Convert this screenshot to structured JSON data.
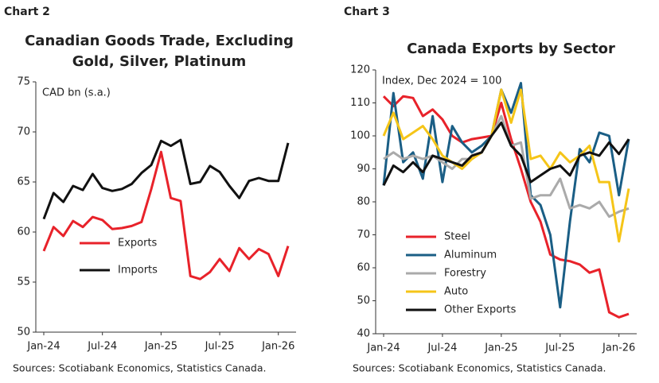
{
  "chart_data": [
    {
      "type": "line",
      "chart_label": "Chart 2",
      "title": [
        "Canadian Goods Trade, Excluding",
        "Gold, Silver, Platinum"
      ],
      "annotation": "CAD bn (s.a.)",
      "categories": [
        "Jan-24",
        null,
        null,
        null,
        null,
        null,
        "Jul-24",
        null,
        null,
        null,
        null,
        null,
        "Jan-25",
        null,
        null,
        null,
        null,
        null,
        "Jul-25",
        null,
        null,
        null,
        null,
        null,
        "Jan-26",
        null
      ],
      "series": [
        {
          "name": "Exports",
          "color": "#e8222a",
          "values": [
            58.1,
            60.5,
            59.6,
            61.1,
            60.5,
            61.5,
            61.2,
            60.3,
            60.4,
            60.6,
            61.0,
            64.3,
            68.0,
            63.4,
            63.1,
            55.6,
            55.3,
            56.0,
            57.3,
            56.1,
            58.4,
            57.3,
            58.3,
            57.8,
            55.6,
            58.6
          ]
        },
        {
          "name": "Imports",
          "color": "#111111",
          "values": [
            61.3,
            63.9,
            63.0,
            64.6,
            64.2,
            65.8,
            64.4,
            64.1,
            64.3,
            64.8,
            65.9,
            66.7,
            69.1,
            68.6,
            69.2,
            64.8,
            65.0,
            66.6,
            66.0,
            64.6,
            63.4,
            65.1,
            65.4,
            65.1,
            65.1,
            68.9
          ]
        }
      ],
      "ylim": [
        50,
        75
      ],
      "yticks": [
        50,
        55,
        60,
        65,
        70,
        75
      ],
      "legend": "lower center",
      "source": "Sources: Scotiabank Economics, Statistics Canada."
    },
    {
      "type": "line",
      "chart_label": "Chart 3",
      "title": [
        "Canada Exports by Sector"
      ],
      "annotation": "Index, Dec 2024 = 100",
      "categories": [
        "Jan-24",
        null,
        null,
        null,
        null,
        null,
        "Jul-24",
        null,
        null,
        null,
        null,
        null,
        "Jan-25",
        null,
        null,
        null,
        null,
        null,
        "Jul-25",
        null,
        null,
        null,
        null,
        null,
        "Jan-26",
        null
      ],
      "series": [
        {
          "name": "Steel",
          "color": "#e8222a",
          "values": [
            112,
            109,
            112,
            111.5,
            106,
            108,
            105,
            100,
            98,
            99,
            99.5,
            100,
            110,
            99,
            90,
            80,
            74,
            64,
            62.5,
            62,
            61,
            58.5,
            59.5,
            46.5,
            45,
            46
          ]
        },
        {
          "name": "Aluminum",
          "color": "#1a5e85",
          "values": [
            85,
            113,
            92,
            95,
            87,
            106,
            86,
            103,
            98,
            95,
            97,
            100,
            114,
            107,
            116,
            82,
            79,
            70,
            48,
            74,
            96,
            92,
            101,
            100,
            82,
            99
          ]
        },
        {
          "name": "Forestry",
          "color": "#aaaaaa",
          "values": [
            93,
            95,
            93,
            94,
            93,
            94,
            92,
            90,
            93,
            93,
            95,
            100,
            106,
            97,
            98,
            81,
            82,
            82,
            87,
            78,
            79,
            78,
            80,
            75.5,
            77,
            78
          ]
        },
        {
          "name": "Auto",
          "color": "#f5c518",
          "values": [
            100,
            107,
            99,
            101,
            103,
            99,
            94,
            92,
            90,
            93,
            95,
            100,
            114,
            104,
            114,
            93,
            94,
            90,
            95,
            92,
            94,
            97,
            86,
            86,
            68,
            84
          ]
        },
        {
          "name": "Other Exports",
          "color": "#111111",
          "values": [
            85,
            91,
            89,
            92,
            89,
            94,
            93,
            92,
            91,
            94,
            95,
            100,
            104,
            97,
            94,
            86,
            88,
            90,
            91,
            88,
            94,
            95,
            94,
            98,
            94.5,
            99
          ]
        }
      ],
      "ylim": [
        40,
        120
      ],
      "yticks": [
        40,
        50,
        60,
        70,
        80,
        90,
        100,
        110,
        120
      ],
      "legend": "lower left",
      "source": "Sources: Scotiabank Economics, Statistics Canada."
    }
  ]
}
